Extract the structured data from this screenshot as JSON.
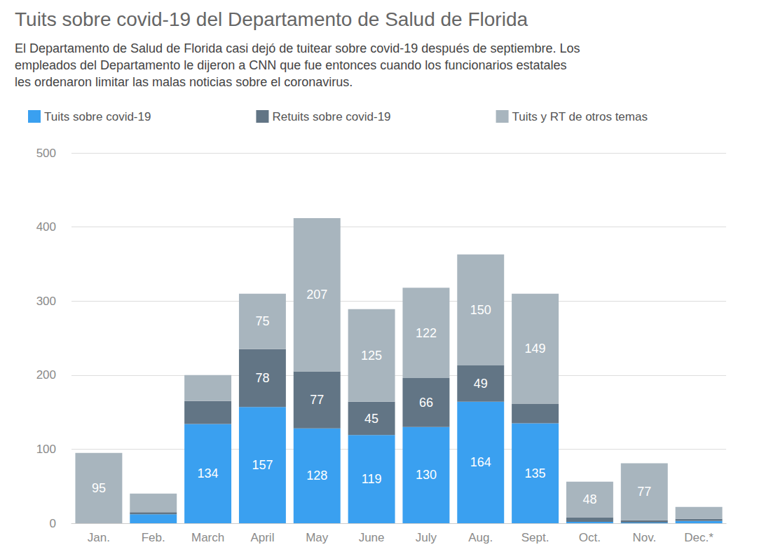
{
  "chart_data": {
    "type": "bar",
    "title": "Tuits sobre covid-19 del Departamento de Salud de Florida",
    "subtitle": "El Departamento de Salud de Florida casi dejó de tuitear sobre covid-19 después de septiembre. Los\nempleados del Departamento le dijeron a CNN que fue entonces cuando los funcionarios estatales\nles ordenaron limitar las malas noticias sobre el coronavirus.",
    "categories": [
      "Jan.",
      "Feb.",
      "March",
      "April",
      "May",
      "June",
      "July",
      "Aug.",
      "Sept.",
      "Oct.",
      "Nov.",
      "Dec.*"
    ],
    "series": [
      {
        "name": "Tuits sobre covid-19",
        "color": "#3aa0f0",
        "values": [
          0,
          12,
          134,
          157,
          128,
          119,
          130,
          164,
          135,
          2,
          1,
          3
        ],
        "value_labels": [
          null,
          null,
          "134",
          "157",
          "128",
          "119",
          "130",
          "164",
          "135",
          null,
          null,
          null
        ]
      },
      {
        "name": "Retuits sobre covid-19",
        "color": "#627585",
        "values": [
          0,
          3,
          31,
          78,
          77,
          45,
          66,
          49,
          26,
          6,
          3,
          3
        ],
        "value_labels": [
          null,
          null,
          null,
          "78",
          "77",
          "45",
          "66",
          "49",
          null,
          null,
          null,
          null
        ]
      },
      {
        "name": "Tuits y RT de otros temas",
        "color": "#a8b5be",
        "values": [
          95,
          25,
          35,
          75,
          207,
          125,
          122,
          150,
          149,
          48,
          77,
          16
        ],
        "value_labels": [
          "95",
          null,
          null,
          "75",
          "207",
          "125",
          "122",
          "150",
          "149",
          "48",
          "77",
          null
        ]
      }
    ],
    "stacked": true,
    "data_labels": true,
    "legend": "top-left",
    "grid": true,
    "ylim": [
      0,
      500
    ],
    "yticks": [
      0,
      100,
      200,
      300,
      400,
      500
    ]
  }
}
